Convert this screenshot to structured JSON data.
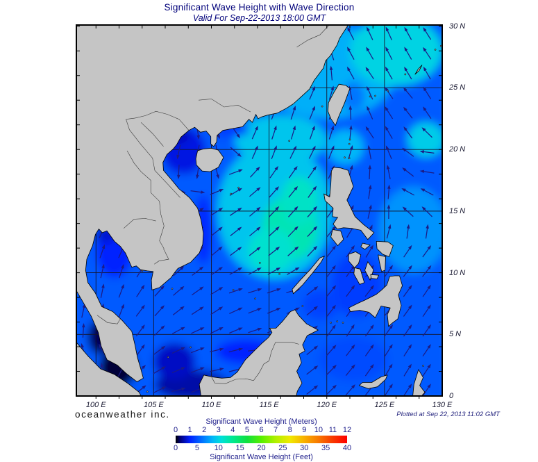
{
  "title": "Significant Wave Height with Wave Direction",
  "subtitle": "Valid For Sep-22-2013 18:00 GMT",
  "branding": "oceanweather inc.",
  "plotted": "Plotted at Sep 22, 2013 11:02 GMT",
  "axes": {
    "lon_range": [
      98.3,
      130
    ],
    "lat_range": [
      0,
      30.1
    ],
    "lon_tick_labels": [
      {
        "lon": 100,
        "label": "100 E"
      },
      {
        "lon": 105,
        "label": "105 E"
      },
      {
        "lon": 110,
        "label": "110 E"
      },
      {
        "lon": 115,
        "label": "115 E"
      },
      {
        "lon": 120,
        "label": "120 E"
      },
      {
        "lon": 125,
        "label": "125 E"
      },
      {
        "lon": 130,
        "label": "130 E"
      }
    ],
    "lat_tick_labels": [
      {
        "lat": 30,
        "label": "30 N"
      },
      {
        "lat": 25,
        "label": "25 N"
      },
      {
        "lat": 20,
        "label": "20 N"
      },
      {
        "lat": 15,
        "label": "15 N"
      },
      {
        "lat": 10,
        "label": "10 N"
      },
      {
        "lat": 5,
        "label": "5 N"
      },
      {
        "lat": 0,
        "label": "0"
      }
    ],
    "grid_lons": [
      100,
      105,
      110,
      115,
      120,
      125
    ],
    "grid_lats": [
      5,
      10,
      15,
      20,
      25
    ],
    "minor_tick_step_deg": 2
  },
  "colorbar": {
    "label_meters": "Significant Wave Height (Meters)",
    "label_feet": "Significant Wave Height (Feet)",
    "meters_ticks": [
      "0",
      "1",
      "2",
      "3",
      "4",
      "5",
      "6",
      "7",
      "8",
      "9",
      "10",
      "11",
      "12"
    ],
    "feet_ticks": [
      "0",
      "5",
      "10",
      "15",
      "20",
      "25",
      "30",
      "35",
      "40"
    ],
    "min_meters": 0,
    "max_meters": 12,
    "max_feet": 40,
    "stops": [
      [
        0,
        "#000000"
      ],
      [
        0.35,
        "#000080"
      ],
      [
        1,
        "#0020ff"
      ],
      [
        2,
        "#0080ff"
      ],
      [
        2.6,
        "#00b8f8"
      ],
      [
        3.2,
        "#00e0d8"
      ],
      [
        4,
        "#00e890"
      ],
      [
        5,
        "#10e040"
      ],
      [
        6,
        "#58f000"
      ],
      [
        7,
        "#b0f000"
      ],
      [
        8,
        "#f0e800"
      ],
      [
        9,
        "#f8b000"
      ],
      [
        10,
        "#f87800"
      ],
      [
        11,
        "#f83800"
      ],
      [
        12,
        "#ff0000"
      ]
    ]
  },
  "colors": {
    "land": "#c5c5c5",
    "coastline": "#000000",
    "grid": "#14142a",
    "arrow": "#1b1b85",
    "title_text": "#00007a",
    "axis_text": "#15152e",
    "annotation_text": "#24247e"
  },
  "chart_data": {
    "type": "heatmap",
    "quantity": "significant wave height (m) with wave direction",
    "valid_time": "Sep-22-2013 18:00 GMT",
    "plotted_time": "Sep 22, 2013 11:02 GMT",
    "region": "South China Sea / Western Pacific, 100E-130E, 0N-30N",
    "hs_scale_m": [
      0,
      12
    ],
    "base_hs_m": 1.6,
    "wave_height_field": [
      {
        "area": "central South China Sea",
        "lon": 115.5,
        "lat": 15.0,
        "rx": 5.0,
        "ry": 5.5,
        "hs_m": 2.8
      },
      {
        "area": "north SCS toward China coast",
        "lon": 116.0,
        "lat": 20.8,
        "rx": 4.0,
        "ry": 2.0,
        "hs_m": 2.8
      },
      {
        "area": "SCS green core",
        "lon": 116.8,
        "lat": 13.6,
        "rx": 2.4,
        "ry": 2.6,
        "hs_m": 3.6
      },
      {
        "area": "SCS green finger north",
        "lon": 117.6,
        "lat": 15.8,
        "rx": 1.6,
        "ry": 2.0,
        "hs_m": 3.4
      },
      {
        "area": "SCS green SW extension",
        "lon": 115.2,
        "lat": 11.8,
        "rx": 2.0,
        "ry": 1.8,
        "hs_m": 3.3
      },
      {
        "area": "NE of Taiwan / East China Sea",
        "lon": 120.0,
        "lat": 26.3,
        "rx": 6.0,
        "ry": 3.8,
        "hs_m": 2.5
      },
      {
        "area": "NE corner",
        "lon": 126.0,
        "lat": 28.0,
        "rx": 4.0,
        "ry": 2.8,
        "hs_m": 3.0
      },
      {
        "area": "east spot near 128E 21N",
        "lon": 128.6,
        "lat": 20.8,
        "rx": 1.6,
        "ry": 1.4,
        "hs_m": 2.9
      },
      {
        "area": "Philippine Sea",
        "lon": 127.5,
        "lat": 13.5,
        "rx": 3.0,
        "ry": 3.5,
        "hs_m": 2.2
      },
      {
        "area": "Luzon Strait",
        "lon": 121.6,
        "lat": 20.2,
        "rx": 1.6,
        "ry": 1.4,
        "hs_m": 2.6
      },
      {
        "area": "east of Taiwan coast",
        "lon": 122.3,
        "lat": 24.3,
        "rx": 1.0,
        "ry": 1.2,
        "hs_m": 1.9
      },
      {
        "area": "Gulf of Tonkin",
        "lon": 107.6,
        "lat": 19.9,
        "rx": 1.9,
        "ry": 1.9,
        "hs_m": 0.85
      },
      {
        "area": "Gulf of Tonkin north",
        "lon": 106.9,
        "lat": 21.2,
        "rx": 1.2,
        "ry": 0.8,
        "hs_m": 0.65
      },
      {
        "area": "Gulf of Thailand",
        "lon": 101.6,
        "lat": 11.8,
        "rx": 1.6,
        "ry": 2.2,
        "hs_m": 1.0
      },
      {
        "area": "Gulf of Thailand head",
        "lon": 100.8,
        "lat": 13.1,
        "rx": 0.9,
        "ry": 0.7,
        "hs_m": 0.75
      },
      {
        "area": "Malacca Strait north",
        "lon": 100.3,
        "lat": 4.8,
        "rx": 1.0,
        "ry": 1.4,
        "hs_m": 0.25
      },
      {
        "area": "Malacca Strait south",
        "lon": 101.9,
        "lat": 2.3,
        "rx": 1.6,
        "ry": 1.6,
        "hs_m": 0.15
      },
      {
        "area": "Java Sea",
        "lon": 108.3,
        "lat": 0.9,
        "rx": 3.2,
        "ry": 1.2,
        "hs_m": 0.55
      },
      {
        "area": "south Gulf / Natuna",
        "lon": 106.8,
        "lat": 2.8,
        "rx": 1.8,
        "ry": 1.5,
        "hs_m": 0.7
      },
      {
        "area": "NW Borneo coast",
        "lon": 113.0,
        "lat": 3.6,
        "rx": 2.6,
        "ry": 1.0,
        "hs_m": 1.0
      },
      {
        "area": "Philippine inner seas",
        "lon": 122.6,
        "lat": 9.0,
        "rx": 2.2,
        "ry": 2.6,
        "hs_m": 1.3
      },
      {
        "area": "Sulu Sea",
        "lon": 119.5,
        "lat": 7.4,
        "rx": 1.6,
        "ry": 1.2,
        "hs_m": 1.35
      },
      {
        "area": "Celebes Sea",
        "lon": 122.3,
        "lat": 3.0,
        "rx": 3.0,
        "ry": 1.8,
        "hs_m": 1.45
      },
      {
        "area": "Vietnam coastal strip",
        "lon": 109.3,
        "lat": 13.5,
        "rx": 0.8,
        "ry": 2.8,
        "hs_m": 1.1
      },
      {
        "area": "SW China coastal strip",
        "lon": 111.5,
        "lat": 21.6,
        "rx": 1.8,
        "ry": 0.6,
        "hs_m": 1.3
      }
    ],
    "wave_direction_field": [
      {
        "lon": 100.6,
        "lat": 7.5,
        "toward_deg": 5
      },
      {
        "lon": 101.0,
        "lat": 10.5,
        "toward_deg": 10
      },
      {
        "lon": 101.6,
        "lat": 12.8,
        "toward_deg": 25
      },
      {
        "lon": 100.2,
        "lat": 3.5,
        "toward_deg": 320
      },
      {
        "lon": 103.0,
        "lat": 4.0,
        "toward_deg": 30
      },
      {
        "lon": 105.0,
        "lat": 6.5,
        "toward_deg": 40
      },
      {
        "lon": 105.5,
        "lat": 2.0,
        "toward_deg": 60
      },
      {
        "lon": 107.0,
        "lat": 0.8,
        "toward_deg": 80
      },
      {
        "lon": 108.0,
        "lat": 4.5,
        "toward_deg": 75
      },
      {
        "lon": 111.0,
        "lat": 3.0,
        "toward_deg": 85
      },
      {
        "lon": 114.5,
        "lat": 3.5,
        "toward_deg": 90
      },
      {
        "lon": 110.0,
        "lat": 7.0,
        "toward_deg": 55
      },
      {
        "lon": 113.0,
        "lat": 8.5,
        "toward_deg": 80
      },
      {
        "lon": 116.5,
        "lat": 8.5,
        "toward_deg": 82
      },
      {
        "lon": 110.5,
        "lat": 12.0,
        "toward_deg": 50
      },
      {
        "lon": 114.0,
        "lat": 13.0,
        "toward_deg": 50
      },
      {
        "lon": 116.5,
        "lat": 15.5,
        "toward_deg": 42
      },
      {
        "lon": 112.0,
        "lat": 16.0,
        "toward_deg": 60
      },
      {
        "lon": 118.0,
        "lat": 18.0,
        "toward_deg": 38
      },
      {
        "lon": 107.6,
        "lat": 19.5,
        "toward_deg": 195
      },
      {
        "lon": 109.5,
        "lat": 19.0,
        "toward_deg": 200
      },
      {
        "lon": 111.5,
        "lat": 20.8,
        "toward_deg": 160
      },
      {
        "lon": 114.5,
        "lat": 20.5,
        "toward_deg": 10
      },
      {
        "lon": 117.0,
        "lat": 21.8,
        "toward_deg": 15
      },
      {
        "lon": 119.5,
        "lat": 24.0,
        "toward_deg": 30
      },
      {
        "lon": 121.3,
        "lat": 20.3,
        "toward_deg": 25
      },
      {
        "lon": 119.0,
        "lat": 14.0,
        "toward_deg": 45
      },
      {
        "lon": 121.0,
        "lat": 10.0,
        "toward_deg": 35
      },
      {
        "lon": 121.5,
        "lat": 6.0,
        "toward_deg": 30
      },
      {
        "lon": 125.0,
        "lat": 8.0,
        "toward_deg": 40
      },
      {
        "lon": 128.0,
        "lat": 11.0,
        "toward_deg": 42
      },
      {
        "lon": 127.5,
        "lat": 16.0,
        "toward_deg": 280
      },
      {
        "lon": 128.5,
        "lat": 19.0,
        "toward_deg": 265
      },
      {
        "lon": 125.0,
        "lat": 16.3,
        "toward_deg": 10
      },
      {
        "lon": 124.0,
        "lat": 21.5,
        "toward_deg": 320
      },
      {
        "lon": 126.5,
        "lat": 24.0,
        "toward_deg": 315
      },
      {
        "lon": 123.0,
        "lat": 26.5,
        "toward_deg": 320
      },
      {
        "lon": 128.5,
        "lat": 28.5,
        "toward_deg": 325
      },
      {
        "lon": 122.0,
        "lat": 28.5,
        "toward_deg": 330
      },
      {
        "lon": 126.0,
        "lat": 2.5,
        "toward_deg": 30
      },
      {
        "lon": 129.0,
        "lat": 5.0,
        "toward_deg": 35
      }
    ]
  }
}
